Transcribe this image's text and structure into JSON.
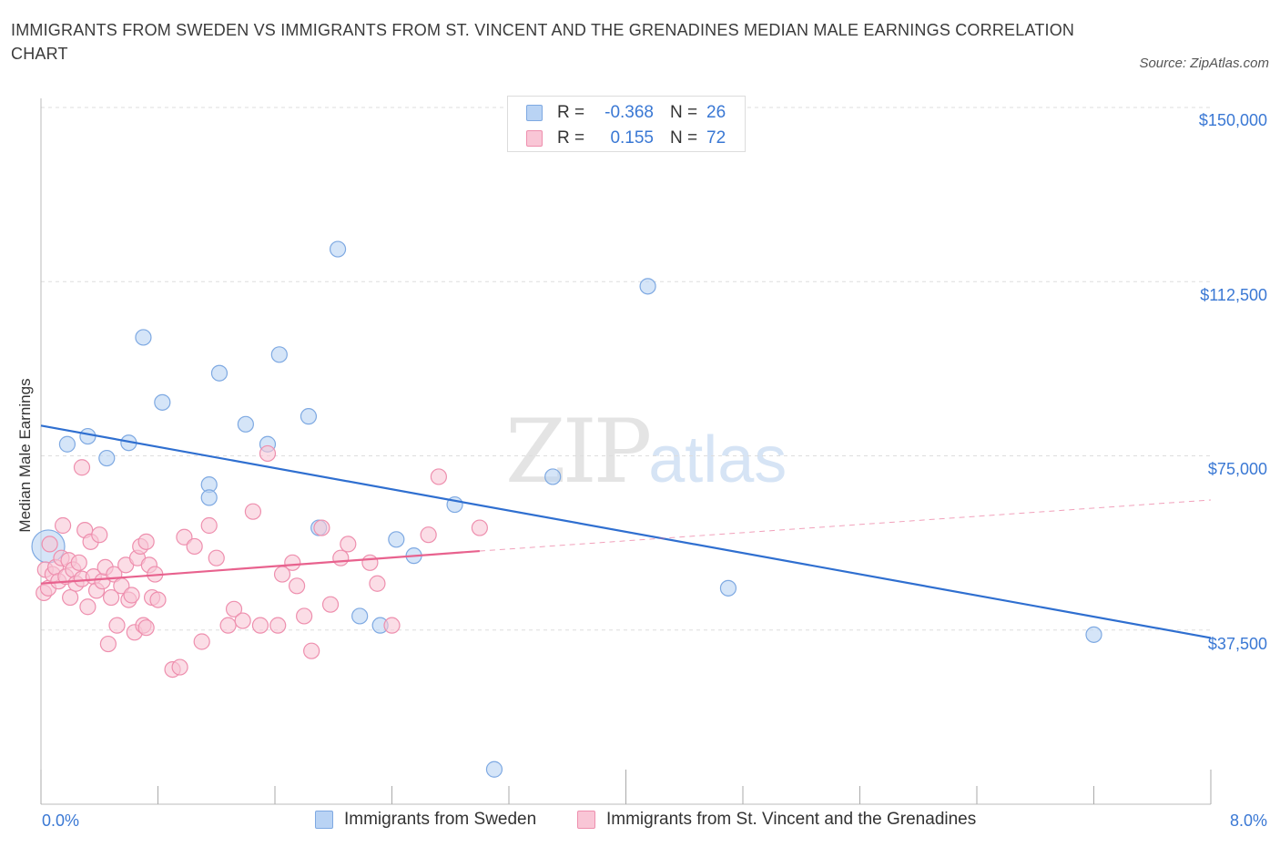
{
  "title": "IMMIGRANTS FROM SWEDEN VS IMMIGRANTS FROM ST. VINCENT AND THE GRENADINES MEDIAN MALE EARNINGS CORRELATION CHART",
  "source": "Source: ZipAtlas.com",
  "watermark": {
    "zip": "ZIP",
    "atlas": "atlas"
  },
  "legend": {
    "rows": [
      {
        "r_label": "R =",
        "r_value": "-0.368",
        "n_label": "N =",
        "n_value": "26"
      },
      {
        "r_label": "R =",
        "r_value": "0.155",
        "n_label": "N =",
        "n_value": "72"
      }
    ]
  },
  "bottom_legend": [
    "Immigrants from Sweden",
    "Immigrants from St. Vincent and the Grenadines"
  ],
  "colors": {
    "sweden_fill": "#b9d3f4",
    "sweden_stroke": "#7ea9e2",
    "sweden_line": "#2f6fd0",
    "svg_fill": "#f9c6d6",
    "svg_stroke": "#ee8fae",
    "svg_line": "#e8628e",
    "axis_text": "#3a78d4",
    "grid": "#dddddd"
  },
  "chart_data": {
    "type": "scatter",
    "title": "IMMIGRANTS FROM SWEDEN VS IMMIGRANTS FROM ST. VINCENT AND THE GRENADINES MEDIAN MALE EARNINGS CORRELATION CHART",
    "xlabel": "",
    "ylabel": "Median Male Earnings",
    "xlim": [
      0,
      8
    ],
    "ylim": [
      0,
      150000
    ],
    "x_tick_labels": [
      "0.0%",
      "8.0%"
    ],
    "y_ticks": [
      37500,
      75000,
      112500,
      150000
    ],
    "y_tick_labels": [
      "$37,500",
      "$75,000",
      "$112,500",
      "$150,000"
    ],
    "grid": true,
    "legend_position": "top-center",
    "series": [
      {
        "name": "Immigrants from Sweden",
        "r": -0.368,
        "n": 26,
        "trend": {
          "x": [
            0,
            8
          ],
          "y": [
            81500,
            35800
          ],
          "dashed_extension": false
        },
        "points": [
          [
            0.05,
            55500,
            "large"
          ],
          [
            0.18,
            77500
          ],
          [
            0.32,
            79200
          ],
          [
            0.45,
            74500
          ],
          [
            0.6,
            77800
          ],
          [
            0.7,
            100500
          ],
          [
            0.83,
            86500
          ],
          [
            1.22,
            92800
          ],
          [
            1.15,
            68800
          ],
          [
            1.15,
            66000
          ],
          [
            1.4,
            81800
          ],
          [
            1.55,
            77500
          ],
          [
            1.63,
            96800
          ],
          [
            1.83,
            83500
          ],
          [
            1.9,
            59500
          ],
          [
            2.03,
            119500
          ],
          [
            2.18,
            40500
          ],
          [
            2.32,
            38500
          ],
          [
            2.43,
            57000
          ],
          [
            2.55,
            53500
          ],
          [
            2.83,
            64500
          ],
          [
            3.1,
            7500
          ],
          [
            3.5,
            70500
          ],
          [
            4.15,
            111500
          ],
          [
            4.7,
            46500
          ],
          [
            7.2,
            36500
          ]
        ]
      },
      {
        "name": "Immigrants from St. Vincent and the Grenadines",
        "r": 0.155,
        "n": 72,
        "trend": {
          "x": [
            0,
            3.0
          ],
          "y": [
            47500,
            54500
          ],
          "dashed_extension": {
            "x": [
              3.0,
              8
            ],
            "y": [
              54500,
              65500
            ]
          }
        },
        "points": [
          [
            0.02,
            45500
          ],
          [
            0.03,
            50500
          ],
          [
            0.05,
            46500
          ],
          [
            0.06,
            56000
          ],
          [
            0.08,
            49500
          ],
          [
            0.1,
            51000
          ],
          [
            0.12,
            48000
          ],
          [
            0.14,
            53000
          ],
          [
            0.15,
            60000
          ],
          [
            0.17,
            49000
          ],
          [
            0.19,
            52500
          ],
          [
            0.2,
            44500
          ],
          [
            0.22,
            50500
          ],
          [
            0.24,
            47500
          ],
          [
            0.26,
            52000
          ],
          [
            0.28,
            48500
          ],
          [
            0.3,
            59000
          ],
          [
            0.32,
            42500
          ],
          [
            0.34,
            56500
          ],
          [
            0.36,
            49000
          ],
          [
            0.28,
            72500
          ],
          [
            0.38,
            46000
          ],
          [
            0.4,
            58000
          ],
          [
            0.42,
            48000
          ],
          [
            0.44,
            51000
          ],
          [
            0.46,
            34500
          ],
          [
            0.48,
            44500
          ],
          [
            0.5,
            49500
          ],
          [
            0.52,
            38500
          ],
          [
            0.55,
            47000
          ],
          [
            0.58,
            51500
          ],
          [
            0.6,
            44000
          ],
          [
            0.62,
            45000
          ],
          [
            0.64,
            37000
          ],
          [
            0.66,
            53000
          ],
          [
            0.68,
            55500
          ],
          [
            0.7,
            38500
          ],
          [
            0.72,
            56500
          ],
          [
            0.74,
            51500
          ],
          [
            0.76,
            44500
          ],
          [
            0.78,
            49500
          ],
          [
            0.8,
            44000
          ],
          [
            0.72,
            38000
          ],
          [
            0.9,
            29000
          ],
          [
            0.95,
            29500
          ],
          [
            0.98,
            57500
          ],
          [
            1.05,
            55500
          ],
          [
            1.1,
            35000
          ],
          [
            1.15,
            60000
          ],
          [
            1.2,
            53000
          ],
          [
            1.28,
            38500
          ],
          [
            1.32,
            42000
          ],
          [
            1.38,
            39500
          ],
          [
            1.45,
            63000
          ],
          [
            1.5,
            38500
          ],
          [
            1.55,
            75500
          ],
          [
            1.62,
            38500
          ],
          [
            1.65,
            49500
          ],
          [
            1.72,
            52000
          ],
          [
            1.75,
            47000
          ],
          [
            1.8,
            40500
          ],
          [
            1.85,
            33000
          ],
          [
            1.92,
            59500
          ],
          [
            1.98,
            43000
          ],
          [
            2.05,
            53000
          ],
          [
            2.1,
            56000
          ],
          [
            2.25,
            52000
          ],
          [
            2.3,
            47500
          ],
          [
            2.4,
            38500
          ],
          [
            2.65,
            58000
          ],
          [
            2.72,
            70500
          ],
          [
            3.0,
            59500
          ]
        ]
      }
    ]
  }
}
